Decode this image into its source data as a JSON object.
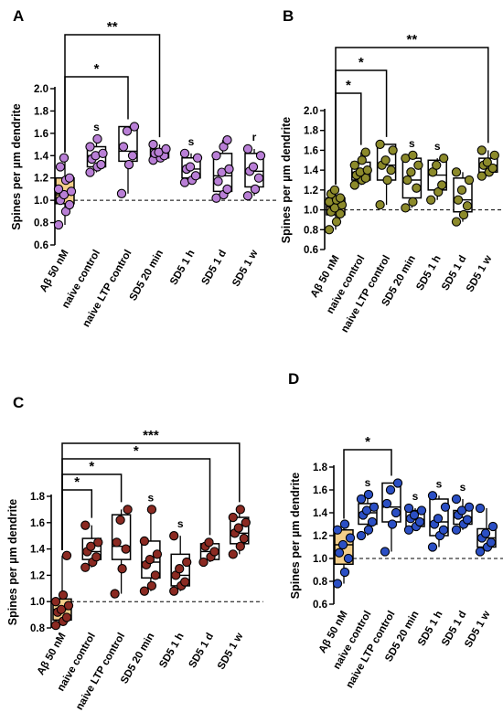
{
  "figure": {
    "panels": [
      "A",
      "B",
      "C",
      "D"
    ]
  },
  "chart_data": [
    {
      "panel": "A",
      "type": "box-scatter",
      "ylabel": "Spines per µm dendrite",
      "ylim": [
        0.6,
        2.0
      ],
      "yticks": [
        "0.6",
        "0.8",
        "1.0",
        "1.2",
        "1.4",
        "1.6",
        "1.8",
        "2.0"
      ],
      "baseline": 1.0,
      "categories": [
        "Aβ 50 nM",
        "naive control",
        "naive LTP control",
        "SD5 20 min",
        "SD5 1 h",
        "SD5 1 d",
        "SD5 1 w"
      ],
      "point_color": "#B97FD6",
      "first_box_fill": "#F4CF8A",
      "values": [
        [
          0.78,
          0.9,
          0.96,
          1.0,
          1.05,
          1.08,
          1.1,
          1.18,
          1.2,
          1.3,
          1.38
        ],
        [
          1.25,
          1.3,
          1.32,
          1.37,
          1.4,
          1.42,
          1.48,
          1.55
        ],
        [
          1.06,
          1.32,
          1.4,
          1.48,
          1.62,
          1.66
        ],
        [
          1.36,
          1.38,
          1.4,
          1.42,
          1.43,
          1.46,
          1.5
        ],
        [
          1.16,
          1.18,
          1.22,
          1.28,
          1.3,
          1.38,
          1.42
        ],
        [
          1.02,
          1.05,
          1.1,
          1.17,
          1.25,
          1.28,
          1.4,
          1.48,
          1.54
        ],
        [
          1.04,
          1.1,
          1.2,
          1.26,
          1.3,
          1.4,
          1.46
        ]
      ],
      "boxes": [
        {
          "q1": 0.97,
          "med": 1.05,
          "q3": 1.2,
          "min": 0.78,
          "max": 1.38
        },
        {
          "q1": 1.3,
          "med": 1.4,
          "q3": 1.48,
          "min": 1.25,
          "max": 1.55
        },
        {
          "q1": 1.35,
          "med": 1.44,
          "q3": 1.66,
          "min": 1.06,
          "max": 1.66
        },
        {
          "q1": 1.38,
          "med": 1.42,
          "q3": 1.46,
          "min": 1.36,
          "max": 1.5
        },
        {
          "q1": 1.2,
          "med": 1.28,
          "q3": 1.38,
          "min": 1.16,
          "max": 1.42
        },
        {
          "q1": 1.08,
          "med": 1.22,
          "q3": 1.42,
          "min": 1.02,
          "max": 1.54
        },
        {
          "q1": 1.12,
          "med": 1.26,
          "q3": 1.42,
          "min": 1.04,
          "max": 1.46
        }
      ],
      "annotations": [
        {
          "index": 1,
          "text": "s"
        },
        {
          "index": 4,
          "text": "s"
        },
        {
          "index": 6,
          "text": "r"
        }
      ],
      "brackets": [
        {
          "from": 0,
          "to": 2,
          "text": "*",
          "level": 0
        },
        {
          "from": 0,
          "to": 3,
          "text": "**",
          "level": 1
        }
      ]
    },
    {
      "panel": "B",
      "type": "box-scatter",
      "ylabel": "Spines per µm dendrite",
      "ylim": [
        0.6,
        2.0
      ],
      "yticks": [
        "0.6",
        "0.8",
        "1.0",
        "1.2",
        "1.4",
        "1.6",
        "1.8",
        "2.0"
      ],
      "baseline": 1.0,
      "categories": [
        "Aβ 50 nM",
        "naive control",
        "naive LTP control",
        "SD5 20 min",
        "SD5 1 h",
        "SD5 1 d",
        "SD5 1 w"
      ],
      "point_color": "#8C8A2B",
      "first_box_fill": "#F4CF8A",
      "values": [
        [
          0.8,
          0.88,
          0.96,
          0.98,
          1.02,
          1.05,
          1.08,
          1.1,
          1.12,
          1.16,
          1.2
        ],
        [
          1.25,
          1.3,
          1.32,
          1.35,
          1.38,
          1.4,
          1.45,
          1.5,
          1.58
        ],
        [
          1.05,
          1.3,
          1.4,
          1.45,
          1.5,
          1.6,
          1.66
        ],
        [
          1.02,
          1.08,
          1.22,
          1.3,
          1.38,
          1.45,
          1.52,
          1.55
        ],
        [
          1.1,
          1.18,
          1.25,
          1.38,
          1.45,
          1.52
        ],
        [
          0.88,
          0.95,
          1.04,
          1.1,
          1.2,
          1.3,
          1.38
        ],
        [
          1.34,
          1.38,
          1.42,
          1.45,
          1.48,
          1.55,
          1.6
        ]
      ],
      "boxes": [
        {
          "q1": 0.95,
          "med": 1.03,
          "q3": 1.12,
          "min": 0.8,
          "max": 1.2
        },
        {
          "q1": 1.3,
          "med": 1.38,
          "q3": 1.48,
          "min": 1.25,
          "max": 1.58
        },
        {
          "q1": 1.3,
          "med": 1.45,
          "q3": 1.66,
          "min": 1.05,
          "max": 1.66
        },
        {
          "q1": 1.12,
          "med": 1.3,
          "q3": 1.52,
          "min": 1.02,
          "max": 1.55
        },
        {
          "q1": 1.2,
          "med": 1.35,
          "q3": 1.5,
          "min": 1.1,
          "max": 1.52
        },
        {
          "q1": 0.98,
          "med": 1.1,
          "q3": 1.32,
          "min": 0.88,
          "max": 1.38
        },
        {
          "q1": 1.38,
          "med": 1.45,
          "q3": 1.52,
          "min": 1.34,
          "max": 1.6
        }
      ],
      "annotations": [
        {
          "index": 3,
          "text": "s"
        },
        {
          "index": 4,
          "text": "s"
        }
      ],
      "brackets": [
        {
          "from": 0,
          "to": 1,
          "text": "*",
          "level": 0
        },
        {
          "from": 0,
          "to": 2,
          "text": "*",
          "level": 1
        },
        {
          "from": 0,
          "to": 6,
          "text": "**",
          "level": 2
        }
      ]
    },
    {
      "panel": "C",
      "type": "box-scatter",
      "ylabel": "Spines per µm dendrite",
      "ylim": [
        0.8,
        1.8
      ],
      "yticks": [
        "0.8",
        "1.0",
        "1.2",
        "1.4",
        "1.6",
        "1.8"
      ],
      "baseline": 1.0,
      "categories": [
        "Aβ 50 nM",
        "naive control",
        "naive LTP control",
        "SD5 20 min",
        "SD5 1 h",
        "SD5 1 d",
        "SD5 1 w"
      ],
      "point_color": "#8B2A22",
      "first_box_fill": "#F4CF8A",
      "values": [
        [
          0.82,
          0.85,
          0.88,
          0.92,
          0.94,
          0.97,
          1.0,
          1.05,
          1.35
        ],
        [
          1.26,
          1.3,
          1.34,
          1.38,
          1.42,
          1.45,
          1.58
        ],
        [
          1.06,
          1.25,
          1.4,
          1.45,
          1.62,
          1.7
        ],
        [
          1.08,
          1.12,
          1.2,
          1.28,
          1.32,
          1.36,
          1.46,
          1.7
        ],
        [
          1.08,
          1.12,
          1.15,
          1.2,
          1.25,
          1.3,
          1.5
        ],
        [
          1.3,
          1.34,
          1.38,
          1.42,
          1.45
        ],
        [
          1.36,
          1.42,
          1.48,
          1.52,
          1.56,
          1.6,
          1.64,
          1.7
        ]
      ],
      "boxes": [
        {
          "q1": 0.86,
          "med": 0.94,
          "q3": 1.02,
          "min": 0.82,
          "max": 1.35
        },
        {
          "q1": 1.32,
          "med": 1.38,
          "q3": 1.48,
          "min": 1.26,
          "max": 1.58
        },
        {
          "q1": 1.32,
          "med": 1.42,
          "q3": 1.66,
          "min": 1.06,
          "max": 1.7
        },
        {
          "q1": 1.18,
          "med": 1.3,
          "q3": 1.46,
          "min": 1.08,
          "max": 1.7
        },
        {
          "q1": 1.12,
          "med": 1.2,
          "q3": 1.36,
          "min": 1.08,
          "max": 1.5
        },
        {
          "q1": 1.32,
          "med": 1.38,
          "q3": 1.44,
          "min": 1.3,
          "max": 1.45
        },
        {
          "q1": 1.44,
          "med": 1.52,
          "q3": 1.64,
          "min": 1.36,
          "max": 1.7
        }
      ],
      "annotations": [
        {
          "index": 3,
          "text": "s"
        },
        {
          "index": 4,
          "text": "s"
        }
      ],
      "brackets": [
        {
          "from": 0,
          "to": 1,
          "text": "*",
          "level": 0
        },
        {
          "from": 0,
          "to": 2,
          "text": "*",
          "level": 1
        },
        {
          "from": 0,
          "to": 5,
          "text": "*",
          "level": 2
        },
        {
          "from": 0,
          "to": 6,
          "text": "***",
          "level": 3
        }
      ]
    },
    {
      "panel": "D",
      "type": "box-scatter",
      "ylabel": "Spines per µm dendrite",
      "ylim": [
        0.6,
        1.8
      ],
      "yticks": [
        "0.6",
        "0.8",
        "1.0",
        "1.2",
        "1.4",
        "1.6",
        "1.8"
      ],
      "baseline": 1.0,
      "categories": [
        "Aβ 50 nM",
        "naive control",
        "naive LTP control",
        "SD5 20 min",
        "SD5 1 h",
        "SD5 1 d",
        "SD5 1 w"
      ],
      "point_color": "#2B4FC4",
      "first_box_fill": "#F4CF8A",
      "values": [
        [
          0.78,
          0.88,
          1.0,
          1.05,
          1.12,
          1.18,
          1.25,
          1.3
        ],
        [
          1.2,
          1.25,
          1.32,
          1.38,
          1.42,
          1.45,
          1.52,
          1.56
        ],
        [
          1.06,
          1.3,
          1.4,
          1.48,
          1.6,
          1.66
        ],
        [
          1.25,
          1.28,
          1.32,
          1.35,
          1.38,
          1.42,
          1.44
        ],
        [
          1.1,
          1.2,
          1.25,
          1.3,
          1.35,
          1.45,
          1.55
        ],
        [
          1.25,
          1.3,
          1.34,
          1.38,
          1.42,
          1.45,
          1.52
        ],
        [
          1.06,
          1.1,
          1.14,
          1.18,
          1.22,
          1.28,
          1.44
        ]
      ],
      "boxes": [
        {
          "q1": 0.95,
          "med": 1.12,
          "q3": 1.25,
          "min": 0.78,
          "max": 1.3
        },
        {
          "q1": 1.3,
          "med": 1.4,
          "q3": 1.48,
          "min": 1.2,
          "max": 1.56
        },
        {
          "q1": 1.32,
          "med": 1.45,
          "q3": 1.66,
          "min": 1.06,
          "max": 1.66
        },
        {
          "q1": 1.28,
          "med": 1.34,
          "q3": 1.42,
          "min": 1.25,
          "max": 1.44
        },
        {
          "q1": 1.2,
          "med": 1.32,
          "q3": 1.52,
          "min": 1.1,
          "max": 1.55
        },
        {
          "q1": 1.3,
          "med": 1.36,
          "q3": 1.42,
          "min": 1.25,
          "max": 1.52
        },
        {
          "q1": 1.1,
          "med": 1.18,
          "q3": 1.26,
          "min": 1.06,
          "max": 1.44
        }
      ],
      "annotations": [
        {
          "index": 1,
          "text": "s"
        },
        {
          "index": 3,
          "text": "s"
        },
        {
          "index": 4,
          "text": "s"
        },
        {
          "index": 5,
          "text": "s"
        }
      ],
      "brackets": [
        {
          "from": 0,
          "to": 2,
          "text": "*",
          "level": 0
        }
      ]
    }
  ]
}
